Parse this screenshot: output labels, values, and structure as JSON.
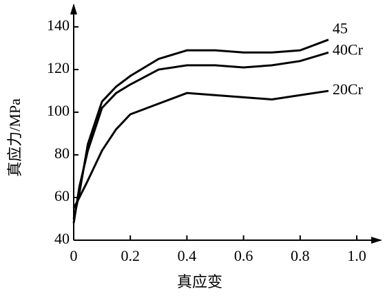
{
  "chart_data": {
    "type": "line",
    "x_label": "真应变",
    "y_label": "真应力/MPa",
    "x": [
      0,
      0.02,
      0.05,
      0.1,
      0.15,
      0.2,
      0.3,
      0.4,
      0.5,
      0.6,
      0.7,
      0.8,
      0.9
    ],
    "series": [
      {
        "name": "45",
        "color": "#000000",
        "values": [
          50,
          62,
          85,
          105,
          112,
          117,
          125,
          129,
          129,
          128,
          128,
          129,
          134
        ]
      },
      {
        "name": "40Cr",
        "color": "#000000",
        "values": [
          48,
          65,
          82,
          102,
          109,
          113,
          120,
          122,
          122,
          121,
          122,
          124,
          128
        ]
      },
      {
        "name": "20Cr",
        "color": "#000000",
        "values": [
          55,
          60,
          68,
          82,
          92,
          99,
          104,
          109,
          108,
          107,
          106,
          108,
          110
        ]
      }
    ],
    "xlim": [
      0,
      1.09
    ],
    "ylim": [
      40,
      151
    ],
    "xticks": [
      0,
      {
        "value": 0.2,
        "label": "0.2"
      },
      {
        "value": 0.4,
        "label": "0.4"
      },
      {
        "value": 0.6,
        "label": "0.6"
      },
      {
        "value": 0.8,
        "label": "0.8"
      },
      {
        "value": 1.0,
        "label": "1.0"
      }
    ],
    "yticks": [
      40,
      60,
      80,
      100,
      120,
      140
    ]
  }
}
